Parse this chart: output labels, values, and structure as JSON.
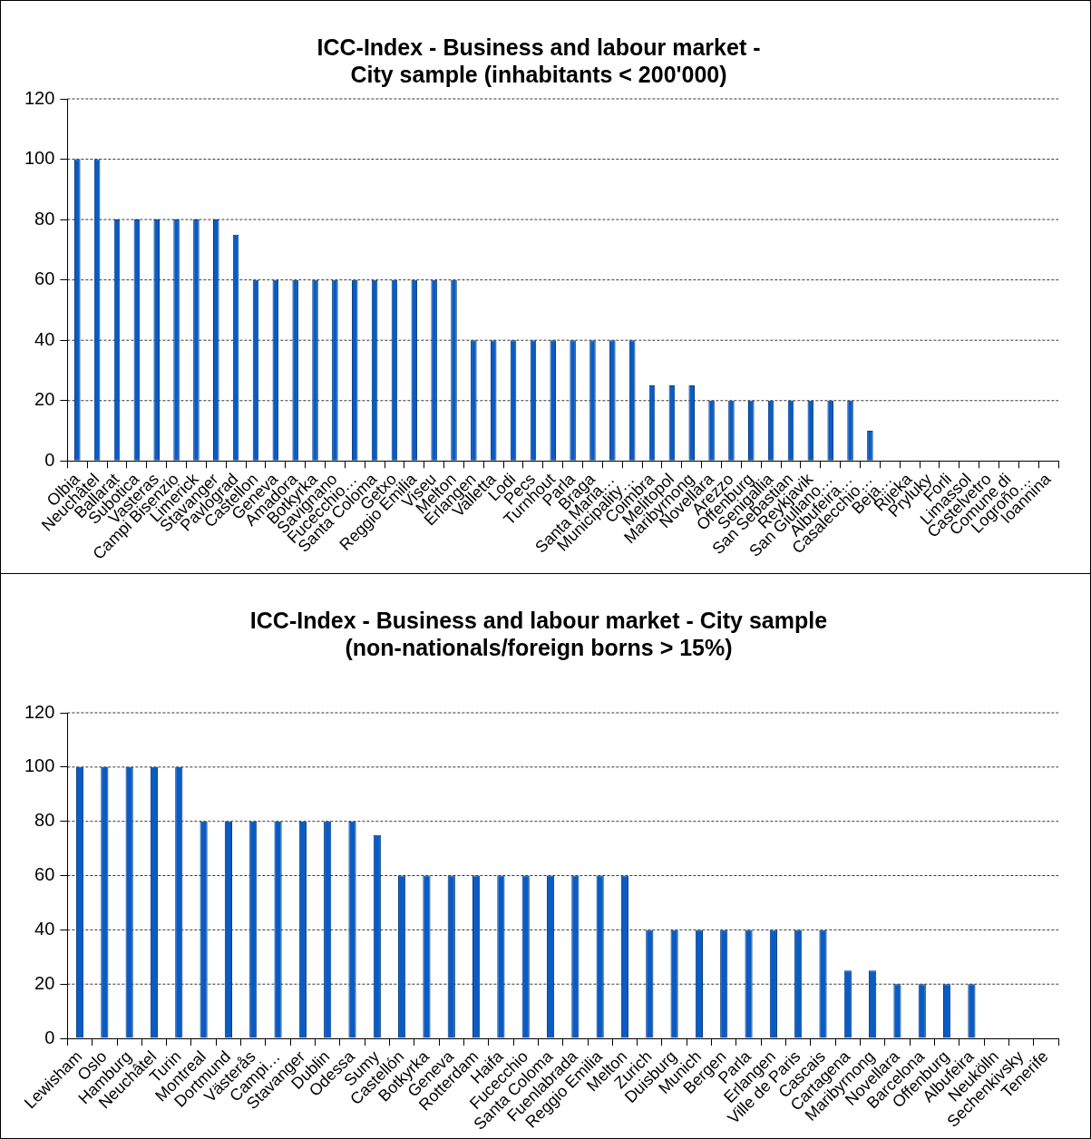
{
  "chart_data": [
    {
      "type": "bar",
      "title": [
        "ICC-Index - Business and labour market -",
        "City sample (inhabitants < 200'000)"
      ],
      "categories": [
        "Olbia",
        "Neuchâtel",
        "Ballarat",
        "Subotica",
        "Vasteras",
        "Campi Bisenzio",
        "Limerick",
        "Stavanger",
        "Pavlograd",
        "Castellon",
        "Geneva",
        "Amadora",
        "Botkyrka",
        "Savignano",
        "Fucecchio…",
        "Santa Coloma",
        "Getxo",
        "Reggio Emilia",
        "Viseu",
        "Melton",
        "Erlangen",
        "Valletta",
        "Lodi",
        "Pecs",
        "Turnhout",
        "Parla",
        "Braga",
        "Santa Maria…",
        "Municipality…",
        "Coimbra",
        "Melitopol",
        "Maribyrnong",
        "Novellara",
        "Arezzo",
        "Offenburg",
        "Senigallia",
        "San Sebastian",
        "Reykjavik",
        "San Giuliano…",
        "Albufeira…",
        "Casalecchio…",
        "Beja…",
        "Rijeka",
        "Pryluky",
        "Forli",
        "Limassol",
        "Castelvetro",
        "Comune di",
        "Logroño…",
        "Ioannina"
      ],
      "values": [
        100,
        100,
        80,
        80,
        80,
        80,
        80,
        80,
        75,
        60,
        60,
        60,
        60,
        60,
        60,
        60,
        60,
        60,
        60,
        60,
        40,
        40,
        40,
        40,
        40,
        40,
        40,
        40,
        40,
        25,
        25,
        25,
        20,
        20,
        20,
        20,
        20,
        20,
        20,
        20,
        10,
        0,
        0,
        0,
        0,
        0,
        0,
        0,
        0,
        0
      ],
      "color": "#0a5bc4",
      "ylim": [
        0,
        120
      ],
      "yticks": [
        0,
        20,
        40,
        60,
        80,
        100,
        120
      ],
      "grid": "y",
      "legend": false
    },
    {
      "type": "bar",
      "title": [
        "ICC-Index - Business and labour market - City sample",
        "(non-nationals/foreign borns > 15%)"
      ],
      "categories": [
        "Lewisham",
        "Oslo",
        "Hamburg",
        "Neuchâtel",
        "Turin",
        "Montreal",
        "Dortmund",
        "Västerås",
        "Campi…",
        "Stavanger",
        "Dublin",
        "Odessa",
        "Sumy",
        "Castellón",
        "Botkyrka",
        "Geneva",
        "Rotterdam",
        "Haifa",
        "Fucecchio",
        "Santa Coloma",
        "Fuenlabrada",
        "Reggio Emilia",
        "Melton",
        "Zurich",
        "Duisburg",
        "Munich",
        "Bergen",
        "Parla",
        "Erlangen",
        "Ville de Paris",
        "Cascais",
        "Cartagena",
        "Maribyrnong",
        "Novellara",
        "Barcelona",
        "Offenburg",
        "Albufeira",
        "Neukölln",
        "Sechenkivsky",
        "Tenerife"
      ],
      "values": [
        100,
        100,
        100,
        100,
        100,
        80,
        80,
        80,
        80,
        80,
        80,
        80,
        75,
        60,
        60,
        60,
        60,
        60,
        60,
        60,
        60,
        60,
        60,
        40,
        40,
        40,
        40,
        40,
        40,
        40,
        40,
        25,
        25,
        20,
        20,
        20,
        20,
        0,
        0,
        0
      ],
      "color": "#0a5bc4",
      "ylim": [
        0,
        120
      ],
      "yticks": [
        0,
        20,
        40,
        60,
        80,
        100,
        120
      ],
      "grid": "y",
      "legend": false
    }
  ]
}
